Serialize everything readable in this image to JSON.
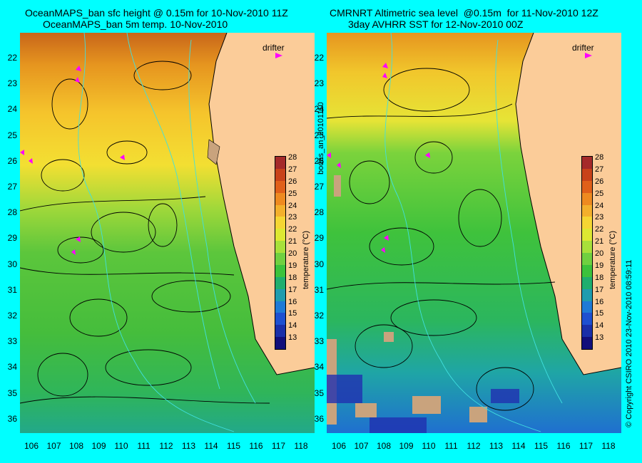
{
  "left": {
    "title_line1": "OceanMAPS_ban sfc height @ 0.15m for 10-Nov-2010 11Z",
    "title_line2": "OceanMAPS_ban 5m temp. 10-Nov-2010"
  },
  "right": {
    "title_line1": "CMRNRT Altimetric sea level  @0.15m  for 11-Nov-2010 12Z",
    "title_line2": "3day AVHRR SST for 12-Nov-2010 00Z"
  },
  "legend": {
    "drifter_label": "drifter",
    "drifter_color": "#ff00ff"
  },
  "y_axis_labels": [
    "22",
    "23",
    "24",
    "25",
    "26",
    "27",
    "28",
    "29",
    "30",
    "31",
    "32",
    "33",
    "34",
    "35",
    "36"
  ],
  "x_axis_labels": [
    "106",
    "107",
    "108",
    "109",
    "110",
    "111",
    "112",
    "113",
    "114",
    "115",
    "116",
    "117",
    "118"
  ],
  "colorbar": {
    "title": "temperature (°C)",
    "ticks": [
      "28",
      "27",
      "26",
      "25",
      "24",
      "23",
      "22",
      "21",
      "20",
      "19",
      "18",
      "17",
      "16",
      "15",
      "14",
      "13"
    ],
    "colors": [
      "#a52a2a",
      "#c8421a",
      "#e0601a",
      "#ee8a20",
      "#f3b02c",
      "#f5d633",
      "#dde832",
      "#a8e03a",
      "#70d040",
      "#3cc23c",
      "#1fae6e",
      "#1e9cae",
      "#1e7ad6",
      "#1e50d0",
      "#1a2fa8",
      "#120f7a"
    ]
  },
  "side_text": {
    "left_vertical": "bodas_an_20101110",
    "right_vertical": "© Copyright CSIRO 2010   23-Nov-2010 08:59:11"
  }
}
